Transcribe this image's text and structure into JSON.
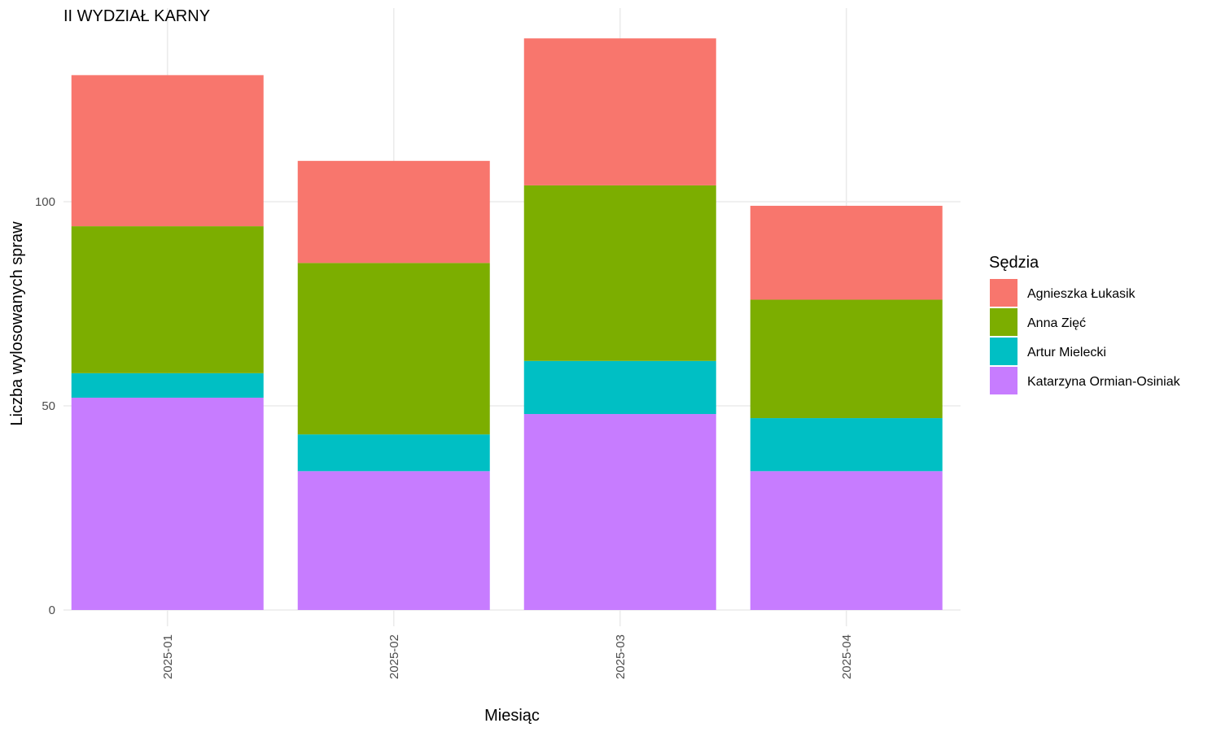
{
  "chart_data": {
    "type": "bar",
    "stacked": true,
    "title": "II WYDZIAŁ KARNY",
    "xlabel": "Miesiąc",
    "ylabel": "Liczba wylosowanych spraw",
    "categories": [
      "2025-01",
      "2025-02",
      "2025-03",
      "2025-04"
    ],
    "ylim": [
      0,
      148
    ],
    "yticks": [
      0,
      50,
      100
    ],
    "grid": true,
    "legend": {
      "title": "Sędzia",
      "position": "right"
    },
    "series": [
      {
        "name": "Katarzyna Ormian-Osiniak",
        "color": "#C77CFF",
        "values": [
          52,
          34,
          48,
          34
        ]
      },
      {
        "name": "Artur Mielecki",
        "color": "#00BFC4",
        "values": [
          6,
          9,
          13,
          13
        ]
      },
      {
        "name": "Anna Zięć",
        "color": "#7CAE00",
        "values": [
          36,
          42,
          43,
          29
        ]
      },
      {
        "name": "Agnieszka Łukasik",
        "color": "#F8766D",
        "values": [
          37,
          25,
          36,
          23
        ]
      }
    ],
    "legend_order": [
      "Agnieszka Łukasik",
      "Anna Zięć",
      "Artur Mielecki",
      "Katarzyna Ormian-Osiniak"
    ]
  }
}
